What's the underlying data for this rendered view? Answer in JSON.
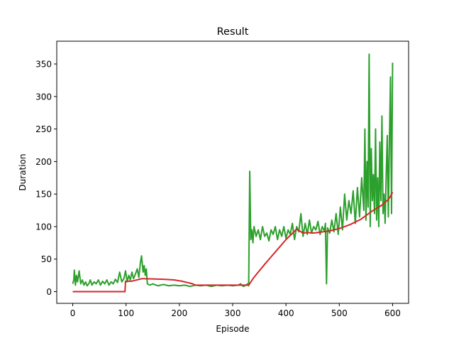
{
  "chart_data": {
    "type": "line",
    "title": "Result",
    "xlabel": "Episode",
    "ylabel": "Duration",
    "xlim": [
      -30,
      630
    ],
    "ylim": [
      -18,
      385
    ],
    "xticks": [
      0,
      100,
      200,
      300,
      400,
      500,
      600
    ],
    "yticks": [
      0,
      50,
      100,
      150,
      200,
      250,
      300,
      350
    ],
    "grid": false,
    "series": [
      {
        "color": "#2ca02c",
        "x": [
          0,
          2,
          3,
          5,
          7,
          9,
          12,
          15,
          18,
          21,
          24,
          27,
          30,
          33,
          36,
          40,
          44,
          48,
          52,
          56,
          60,
          64,
          68,
          72,
          76,
          80,
          84,
          88,
          92,
          96,
          99,
          102,
          105,
          108,
          111,
          114,
          118,
          121,
          124,
          127,
          129,
          132,
          134,
          136,
          138,
          140,
          145,
          150,
          160,
          170,
          180,
          190,
          200,
          210,
          220,
          230,
          240,
          250,
          260,
          270,
          280,
          290,
          300,
          310,
          315,
          320,
          325,
          328,
          330,
          332,
          334,
          336,
          338,
          340,
          344,
          348,
          352,
          356,
          360,
          364,
          368,
          372,
          376,
          380,
          384,
          388,
          392,
          396,
          400,
          404,
          408,
          412,
          416,
          420,
          424,
          428,
          432,
          436,
          440,
          444,
          448,
          452,
          456,
          460,
          464,
          468,
          472,
          474,
          476,
          478,
          482,
          486,
          490,
          494,
          498,
          502,
          506,
          510,
          514,
          518,
          522,
          526,
          530,
          534,
          538,
          542,
          546,
          548,
          550,
          552,
          554,
          556,
          558,
          560,
          562,
          564,
          566,
          568,
          570,
          572,
          574,
          576,
          578,
          580,
          582,
          584,
          586,
          588,
          590,
          592,
          594,
          596,
          598,
          600
        ],
        "y": [
          12,
          18,
          33,
          10,
          25,
          15,
          32,
          12,
          18,
          10,
          15,
          9,
          12,
          18,
          10,
          15,
          12,
          18,
          10,
          16,
          12,
          18,
          10,
          15,
          12,
          19,
          14,
          30,
          15,
          20,
          32,
          15,
          25,
          18,
          30,
          20,
          28,
          35,
          22,
          45,
          55,
          30,
          40,
          25,
          35,
          12,
          10,
          12,
          9,
          11,
          9,
          10,
          9,
          10,
          8,
          10,
          9,
          10,
          8,
          10,
          9,
          10,
          9,
          10,
          12,
          8,
          10,
          12,
          9,
          185,
          80,
          95,
          75,
          100,
          85,
          95,
          80,
          100,
          85,
          90,
          78,
          95,
          88,
          100,
          80,
          95,
          85,
          100,
          82,
          95,
          88,
          105,
          80,
          100,
          92,
          120,
          85,
          105,
          88,
          110,
          90,
          100,
          95,
          108,
          88,
          100,
          93,
          105,
          12,
          98,
          90,
          110,
          92,
          120,
          88,
          130,
          95,
          150,
          110,
          140,
          120,
          155,
          105,
          160,
          115,
          175,
          125,
          250,
          110,
          200,
          130,
          365,
          100,
          220,
          140,
          180,
          120,
          250,
          110,
          175,
          100,
          230,
          140,
          270,
          120,
          150,
          105,
          180,
          240,
          115,
          230,
          330,
          120,
          352
        ]
      },
      {
        "color": "#d62728",
        "x": [
          0,
          98,
          99,
          105,
          110,
          115,
          120,
          125,
          130,
          150,
          170,
          190,
          205,
          215,
          225,
          230,
          240,
          260,
          280,
          300,
          310,
          320,
          325,
          330,
          340,
          360,
          380,
          400,
          420,
          428,
          432,
          440,
          450,
          460,
          470,
          480,
          490,
          500,
          510,
          520,
          530,
          540,
          550,
          560,
          570,
          580,
          585,
          590,
          595,
          600
        ],
        "y": [
          0,
          0,
          16,
          16,
          16,
          17,
          18,
          19,
          20,
          19.5,
          19,
          18,
          16,
          14,
          12,
          10,
          10,
          10,
          10,
          10,
          10,
          10,
          10,
          10,
          22,
          42,
          61,
          80,
          96,
          92,
          90,
          91,
          90,
          91,
          92,
          93,
          95,
          97,
          100,
          103,
          107,
          111,
          117,
          123,
          128,
          133,
          137,
          140,
          145,
          153
        ]
      }
    ]
  }
}
